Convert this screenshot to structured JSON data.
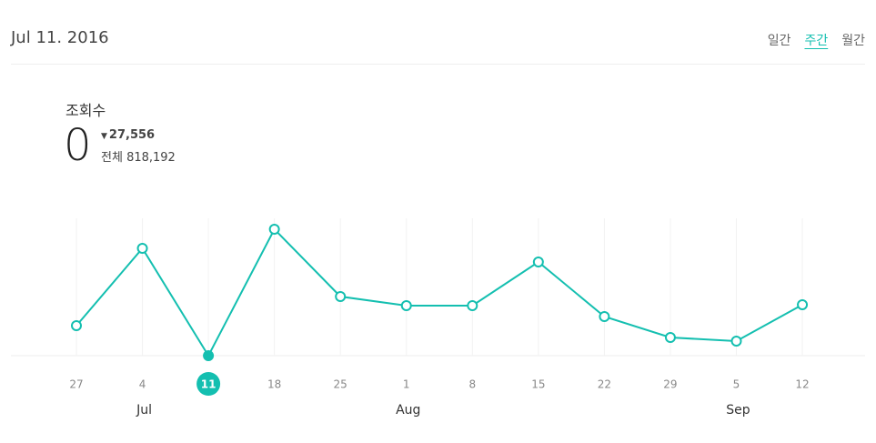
{
  "header": {
    "date": "Jul 11. 2016",
    "tabs": [
      "일간",
      "주간",
      "월간"
    ],
    "active_tab": 1
  },
  "summary": {
    "metric": "조회수",
    "current": 0,
    "change": "27,556",
    "total_label": "전체",
    "total": "818,192"
  },
  "chart_data": {
    "type": "line",
    "color": "#14bfb0",
    "selected": 2,
    "categories": [
      "27",
      "4",
      "11",
      "18",
      "25",
      "1",
      "8",
      "15",
      "22",
      "29",
      "5",
      "12"
    ],
    "months": [
      null,
      "Jul",
      null,
      null,
      null,
      "Aug",
      null,
      null,
      null,
      null,
      "Sep",
      null
    ],
    "values": [
      7706,
      27556,
      0,
      32459,
      15179,
      12844,
      12844,
      24053,
      10041,
      4670,
      3736,
      13077
    ]
  }
}
